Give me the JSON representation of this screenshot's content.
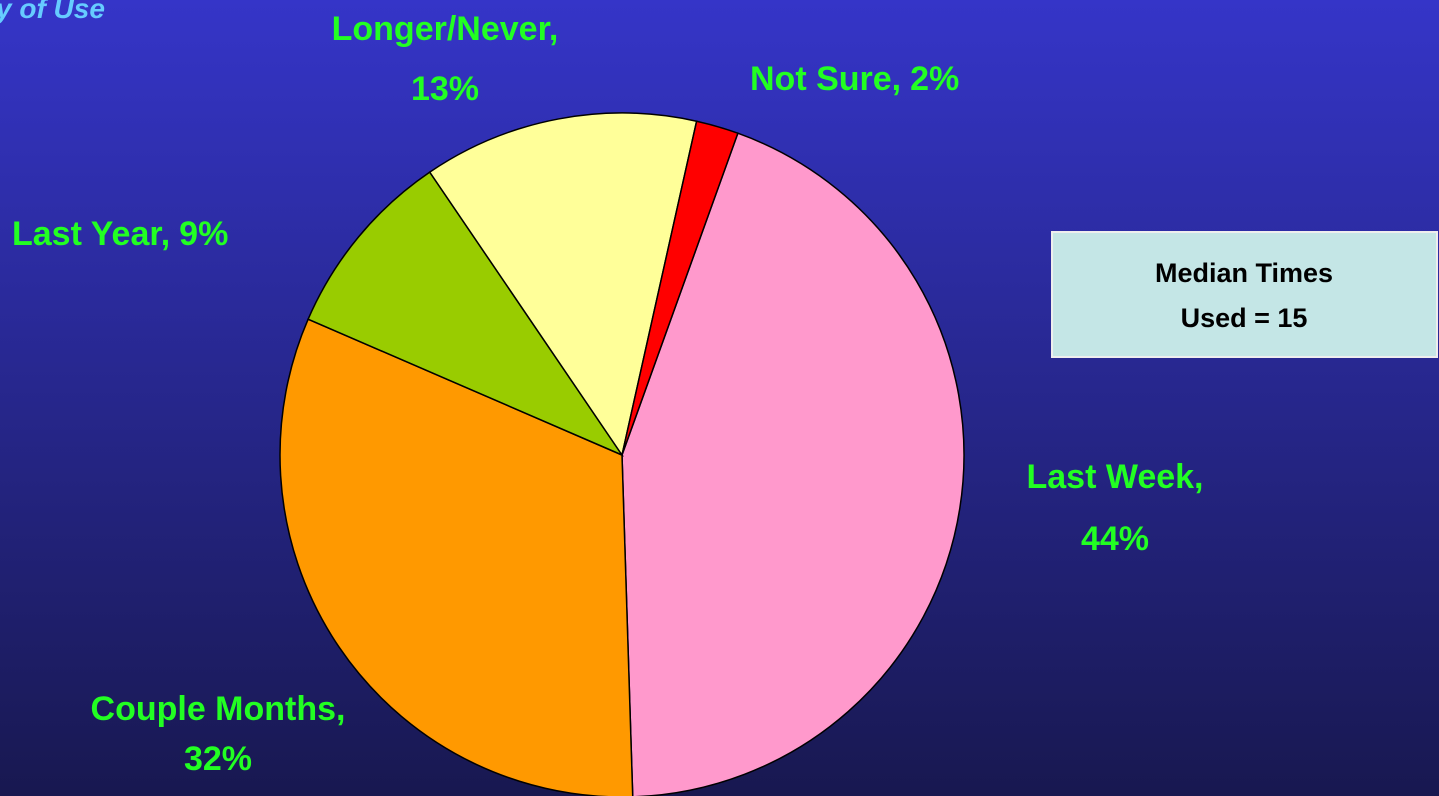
{
  "chart_data": {
    "type": "pie",
    "title": "y of Use",
    "categories": [
      "Last Week,",
      "Couple Months,",
      "Last Year,",
      "Longer/Never,",
      "Not Sure,"
    ],
    "values": [
      44,
      32,
      9,
      13,
      2
    ],
    "value_labels": [
      "44%",
      "32%",
      "9%",
      "13%",
      "2%"
    ],
    "colors": [
      "#ff99cc",
      "#ff9900",
      "#99cc00",
      "#ffff99",
      "#ff0000"
    ],
    "annotation": [
      "Median Times",
      "Used = 15"
    ]
  }
}
